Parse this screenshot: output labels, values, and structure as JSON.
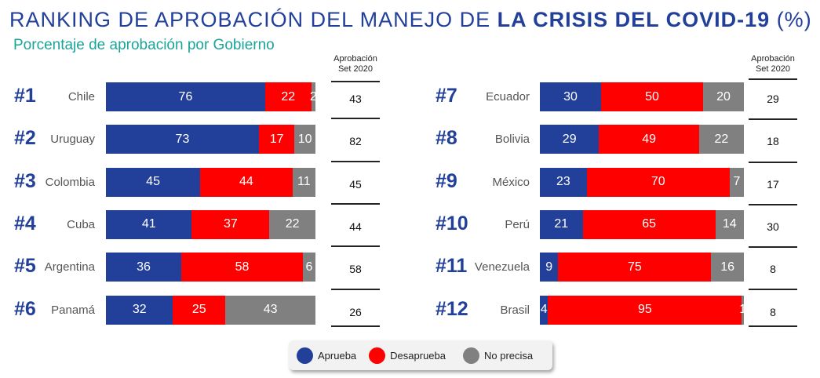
{
  "title_part1": "RANKING DE APROBACIÓN DEL MANEJO DE ",
  "title_bold": "LA CRISIS DEL COVID-19",
  "title_part2": " (%)",
  "subtitle": "Porcentaje de aprobación por Gobierno",
  "chart_data": {
    "type": "bar",
    "orientation": "horizontal-stacked-100",
    "title": "RANKING DE APROBACIÓN DEL MANEJO DE LA CRISIS DEL COVID-19 (%)",
    "subtitle": "Porcentaje de aprobación por Gobierno",
    "side_column_header": "Aprobación Set 2020",
    "legend_position": "bottom-center",
    "colors": {
      "Aprueba": "#22409a",
      "Desaprueba": "#ff0000",
      "No precisa": "#808080"
    },
    "series_names": [
      "Aprueba",
      "Desaprueba",
      "No precisa"
    ],
    "rows": [
      {
        "rank": "#1",
        "country": "Chile",
        "values": [
          76,
          22,
          2
        ],
        "set2020": "43"
      },
      {
        "rank": "#2",
        "country": "Uruguay",
        "values": [
          73,
          17,
          10
        ],
        "set2020": "82"
      },
      {
        "rank": "#3",
        "country": "Colombia",
        "values": [
          45,
          44,
          11
        ],
        "set2020": "45"
      },
      {
        "rank": "#4",
        "country": "Cuba",
        "values": [
          41,
          37,
          22
        ],
        "set2020": "44"
      },
      {
        "rank": "#5",
        "country": "Argentina",
        "values": [
          36,
          58,
          6
        ],
        "set2020": "58"
      },
      {
        "rank": "#6",
        "country": "Panamá",
        "values": [
          32,
          25,
          43
        ],
        "set2020": "26"
      },
      {
        "rank": "#7",
        "country": "Ecuador",
        "values": [
          30,
          50,
          20
        ],
        "set2020": "29"
      },
      {
        "rank": "#8",
        "country": "Bolivia",
        "values": [
          29,
          49,
          22
        ],
        "set2020": "18"
      },
      {
        "rank": "#9",
        "country": "México",
        "values": [
          23,
          70,
          7
        ],
        "set2020": "17"
      },
      {
        "rank": "#10",
        "country": "Perú",
        "values": [
          21,
          65,
          14
        ],
        "set2020": "30"
      },
      {
        "rank": "#11",
        "country": "Venezuela",
        "values": [
          9,
          75,
          16
        ],
        "set2020": "8"
      },
      {
        "rank": "#12",
        "country": "Brasil",
        "values": [
          4,
          95,
          1
        ],
        "set2020": "8"
      }
    ]
  },
  "colhead_line1": "Aprobación",
  "colhead_line2": "Set 2020",
  "legend": [
    {
      "label": "Aprueba",
      "color": "#22409a"
    },
    {
      "label": "Desaprueba",
      "color": "#ff0000"
    },
    {
      "label": "No precisa",
      "color": "#808080"
    }
  ]
}
